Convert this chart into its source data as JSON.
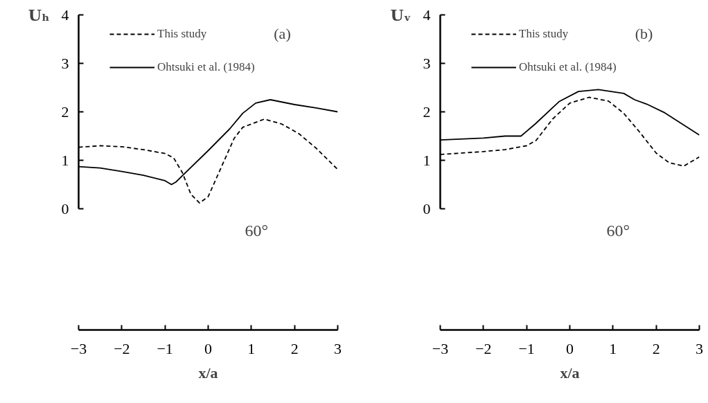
{
  "chart_data": [
    {
      "type": "line",
      "title": "(a)",
      "xlabel": "x/a",
      "ylabel": "Uₕ",
      "xlim": [
        -3,
        3
      ],
      "ylim": [
        -2.5,
        4
      ],
      "xticks": [
        -3,
        -2,
        -1,
        0,
        1,
        2,
        3
      ],
      "yticks": [
        0,
        1,
        2,
        3,
        4
      ],
      "grid": false,
      "legend": "top left",
      "annotations": [
        "60°"
      ],
      "series": [
        {
          "name": "This study",
          "color": "#000000",
          "line_style": "dashed",
          "x": [
            -3,
            -2.5,
            -2,
            -1.5,
            -1,
            -0.8,
            -0.6,
            -0.4,
            -0.2,
            0,
            0.3,
            0.6,
            0.8,
            1.3,
            1.7,
            2.1,
            2.5,
            3
          ],
          "values": [
            1.27,
            1.3,
            1.28,
            1.22,
            1.14,
            1.05,
            0.75,
            0.3,
            0.12,
            0.25,
            0.85,
            1.45,
            1.68,
            1.85,
            1.75,
            1.55,
            1.25,
            0.81
          ]
        },
        {
          "name": "Ohtsuki et al. (1984)",
          "color": "#000000",
          "line_style": "solid",
          "x": [
            -3,
            -2.5,
            -2,
            -1.5,
            -1,
            -0.85,
            -0.75,
            0,
            0.5,
            0.8,
            1.1,
            1.44,
            2,
            2.5,
            3
          ],
          "values": [
            0.87,
            0.84,
            0.77,
            0.69,
            0.58,
            0.5,
            0.55,
            1.2,
            1.65,
            1.97,
            2.18,
            2.25,
            2.15,
            2.08,
            2.0
          ]
        }
      ]
    },
    {
      "type": "line",
      "title": "(b)",
      "xlabel": "x/a",
      "ylabel": "Uᵥ",
      "xlim": [
        -3,
        3
      ],
      "ylim": [
        -2.5,
        4
      ],
      "xticks": [
        -3,
        -2,
        -1,
        0,
        1,
        2,
        3
      ],
      "yticks": [
        0,
        1,
        2,
        3,
        4
      ],
      "grid": false,
      "legend": "top left",
      "annotations": [
        "60°"
      ],
      "series": [
        {
          "name": "This study",
          "color": "#000000",
          "line_style": "dashed",
          "x": [
            -3,
            -2,
            -1.5,
            -1,
            -0.78,
            -0.4,
            0,
            0.45,
            0.9,
            1.25,
            1.6,
            2,
            2.3,
            2.64,
            3
          ],
          "values": [
            1.12,
            1.18,
            1.22,
            1.3,
            1.41,
            1.85,
            2.18,
            2.3,
            2.22,
            1.97,
            1.6,
            1.15,
            0.95,
            0.88,
            1.07
          ]
        },
        {
          "name": "Ohtsuki et al. (1984)",
          "color": "#000000",
          "line_style": "solid",
          "x": [
            -3,
            -2,
            -1.5,
            -1.13,
            -0.8,
            -0.25,
            0.2,
            0.66,
            1.25,
            1.5,
            1.78,
            2.2,
            2.6,
            3
          ],
          "values": [
            1.42,
            1.46,
            1.5,
            1.5,
            1.75,
            2.21,
            2.42,
            2.46,
            2.38,
            2.25,
            2.16,
            1.98,
            1.75,
            1.52
          ]
        }
      ]
    }
  ]
}
